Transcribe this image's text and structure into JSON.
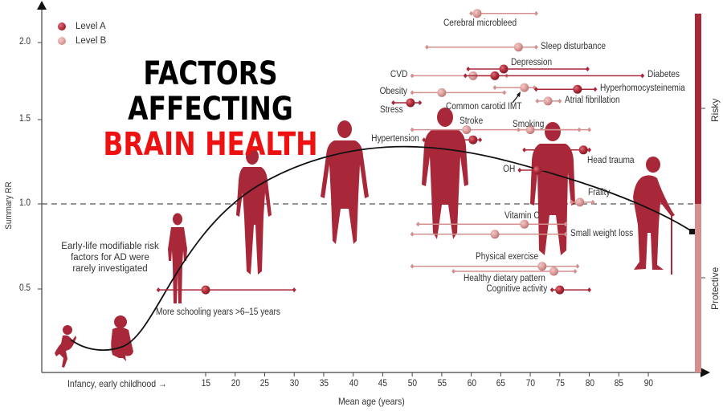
{
  "title": {
    "line1": "FACTORS AFFECTING",
    "line2": "BRAIN HEALTH"
  },
  "legend": [
    {
      "label": "Level A",
      "color": "#b0303d"
    },
    {
      "label": "Level B",
      "color": "#d99a98"
    }
  ],
  "side_bar": {
    "risky_label": "Risky",
    "protective_label": "Protective",
    "risky_color": "#a8283a",
    "protective_color": "#d4908f"
  },
  "annotation": {
    "early_life": [
      "Early-life modifiable risk",
      "factors for AD were",
      "rarely investigated"
    ]
  },
  "axis": {
    "x_prefix": "Infancy, early childhood →",
    "xlabel": "Mean age (years)",
    "ylabel": "Summary RR",
    "x_ticks": [
      15,
      20,
      25,
      30,
      35,
      40,
      45,
      50,
      55,
      60,
      65,
      70,
      75,
      80,
      85,
      90
    ],
    "y_ticks": [
      0.5,
      1.0,
      1.5,
      2.0
    ]
  },
  "colors": {
    "level_a": "#a8283a",
    "level_b": "#d4908f",
    "silhouette": "#a8283a",
    "curve": "#111111"
  },
  "chart_data": {
    "type": "scatter",
    "title": "Factors Affecting Brain Health",
    "xlabel": "Mean age (years)",
    "ylabel": "Summary RR",
    "xlim": [
      15,
      90
    ],
    "ylim": [
      0.0,
      2.2
    ],
    "reference_line": 1.0,
    "grid": false,
    "legend_position": "top-left",
    "series": [
      {
        "name": "Cerebral microbleed",
        "level": "B",
        "age": 61,
        "age_lo": 60,
        "age_hi": 71,
        "rr": 2.13,
        "label_pos": "below"
      },
      {
        "name": "Sleep disturbance",
        "level": "B",
        "age": 68,
        "age_lo": 52.5,
        "age_hi": 71,
        "rr": 1.93,
        "label_pos": "right"
      },
      {
        "name": "Depression",
        "level": "A",
        "age": 65.5,
        "age_lo": 59.5,
        "age_hi": 79.7,
        "rr": 1.8,
        "label_pos": "above"
      },
      {
        "name": "CVD",
        "level": "B",
        "age": 60.3,
        "age_lo": 50,
        "age_hi": 66,
        "rr": 1.76,
        "label_pos": "left"
      },
      {
        "name": "Diabetes",
        "level": "A",
        "age": 64,
        "age_lo": 59,
        "age_hi": 89,
        "rr": 1.76,
        "label_pos": "right"
      },
      {
        "name": "Obesity",
        "level": "B",
        "age": 55,
        "age_lo": 50,
        "age_hi": 65.6,
        "rr": 1.66,
        "label_pos": "left"
      },
      {
        "name": "Common carotid IMT",
        "level": "B",
        "age": 69,
        "age_lo": 64,
        "age_hi": 70.7,
        "rr": 1.69,
        "label_pos": "below-left"
      },
      {
        "name": "Hyperhomocysteinemia",
        "level": "A",
        "age": 78,
        "age_lo": 71,
        "age_hi": 81,
        "rr": 1.68,
        "label_pos": "right"
      },
      {
        "name": "Atrial fibrillation",
        "level": "B",
        "age": 73,
        "age_lo": 71.2,
        "age_hi": 75,
        "rr": 1.61,
        "label_pos": "right"
      },
      {
        "name": "Stress",
        "level": "A",
        "age": 49.7,
        "age_lo": 46.8,
        "age_hi": 51.3,
        "rr": 1.6,
        "label_pos": "below-left"
      },
      {
        "name": "Stroke",
        "level": "B",
        "age": 59.2,
        "age_lo": 50,
        "age_hi": 80,
        "rr": 1.44,
        "label_pos": "above"
      },
      {
        "name": "Smoking",
        "level": "B",
        "age": 70,
        "age_lo": 68,
        "age_hi": 78.3,
        "rr": 1.44,
        "label_pos": "above"
      },
      {
        "name": "Hypertension",
        "level": "A",
        "age": 60.3,
        "age_lo": 52,
        "age_hi": 61.5,
        "rr": 1.38,
        "label_pos": "left"
      },
      {
        "name": "Head trauma",
        "level": "A",
        "age": 79,
        "age_lo": 69,
        "age_hi": 80,
        "rr": 1.32,
        "label_pos": "below-right"
      },
      {
        "name": "OH",
        "level": "A",
        "age": 71.2,
        "age_lo": 68.2,
        "age_hi": 75.4,
        "rr": 1.2,
        "label_pos": "left"
      },
      {
        "name": "Frailty",
        "level": "B",
        "age": 78.4,
        "age_lo": 77,
        "age_hi": 80.6,
        "rr": 1.01,
        "label_pos": "above-right"
      },
      {
        "name": "Vitamin C",
        "level": "B",
        "age": 69,
        "age_lo": 51,
        "age_hi": 76,
        "rr": 0.88,
        "label_pos": "above"
      },
      {
        "name": "Small weight loss",
        "level": "B",
        "age": 64,
        "age_lo": 50,
        "age_hi": 76,
        "rr": 0.82,
        "label_pos": "right"
      },
      {
        "name": "Physical exercise",
        "level": "B",
        "age": 72,
        "age_lo": 50,
        "age_hi": 78,
        "rr": 0.63,
        "label_pos": "above"
      },
      {
        "name": "Healthy dietary pattern",
        "level": "B",
        "age": 74,
        "age_lo": 57,
        "age_hi": 77.6,
        "rr": 0.6,
        "label_pos": "below"
      },
      {
        "name": "Cognitive activity",
        "level": "A",
        "age": 75,
        "age_lo": 73.7,
        "age_hi": 80,
        "rr": 0.49,
        "label_pos": "left"
      },
      {
        "name": "More schooling years >6–15 years",
        "level": "A",
        "age": 15,
        "age_lo": 7,
        "age_hi": 30,
        "rr": 0.49,
        "label_pos": "below"
      }
    ]
  }
}
